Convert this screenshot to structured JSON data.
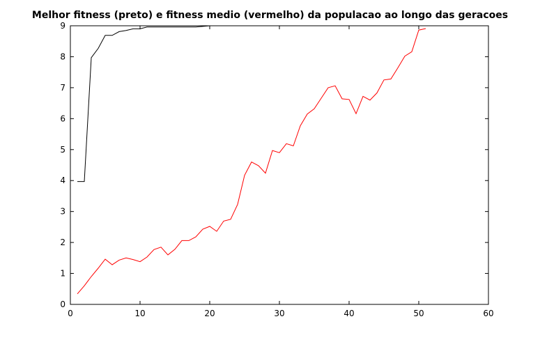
{
  "chart_data": {
    "type": "line",
    "title": "Melhor fitness (preto) e fitness medio (vermelho) da populacao ao longo das geracoes",
    "xlabel": "",
    "ylabel": "",
    "xlim": [
      0,
      60
    ],
    "ylim": [
      0,
      9
    ],
    "xticks": [
      0,
      10,
      20,
      30,
      40,
      50,
      60
    ],
    "yticks": [
      0,
      1,
      2,
      3,
      4,
      5,
      6,
      7,
      8,
      9
    ],
    "grid": false,
    "series": [
      {
        "color": "#000000",
        "x": [
          1,
          2,
          3,
          4,
          5,
          6,
          7,
          8,
          9,
          10,
          11,
          12,
          13,
          14,
          15,
          16,
          17,
          18,
          19,
          20,
          21,
          22,
          23,
          24,
          25,
          26,
          27,
          28,
          29,
          30,
          31,
          32,
          33,
          34,
          35,
          36,
          37,
          38,
          39,
          40,
          41,
          42,
          43,
          44,
          45,
          46,
          47,
          48,
          49,
          50,
          51
        ],
        "y": [
          3.97,
          3.97,
          7.97,
          8.27,
          8.69,
          8.69,
          8.81,
          8.85,
          8.9,
          8.9,
          8.96,
          8.96,
          8.96,
          8.96,
          8.96,
          8.96,
          8.96,
          8.96,
          8.98,
          9,
          9,
          9,
          9,
          9,
          9,
          9,
          9,
          9,
          9,
          9,
          9,
          9,
          9,
          9,
          9,
          9,
          9,
          9,
          9,
          9,
          9,
          9,
          9,
          9,
          9,
          9,
          9,
          9,
          9,
          9,
          9
        ]
      },
      {
        "color": "#ff0000",
        "x": [
          1,
          2,
          3,
          4,
          5,
          6,
          7,
          8,
          9,
          10,
          11,
          12,
          13,
          14,
          15,
          16,
          17,
          18,
          19,
          20,
          21,
          22,
          23,
          24,
          25,
          26,
          27,
          28,
          29,
          30,
          31,
          32,
          33,
          34,
          35,
          36,
          37,
          38,
          39,
          40,
          41,
          42,
          43,
          44,
          45,
          46,
          47,
          48,
          49,
          50,
          51
        ],
        "y": [
          0.34,
          0.6,
          0.9,
          1.17,
          1.46,
          1.28,
          1.43,
          1.5,
          1.45,
          1.38,
          1.53,
          1.77,
          1.85,
          1.6,
          1.78,
          2.06,
          2.06,
          2.18,
          2.43,
          2.52,
          2.36,
          2.69,
          2.75,
          3.23,
          4.17,
          4.6,
          4.48,
          4.24,
          4.97,
          4.9,
          5.19,
          5.12,
          5.77,
          6.15,
          6.32,
          6.66,
          7.0,
          7.06,
          6.64,
          6.62,
          6.16,
          6.72,
          6.6,
          6.83,
          7.25,
          7.28,
          7.64,
          8.02,
          8.16,
          8.86,
          8.91
        ]
      }
    ]
  }
}
